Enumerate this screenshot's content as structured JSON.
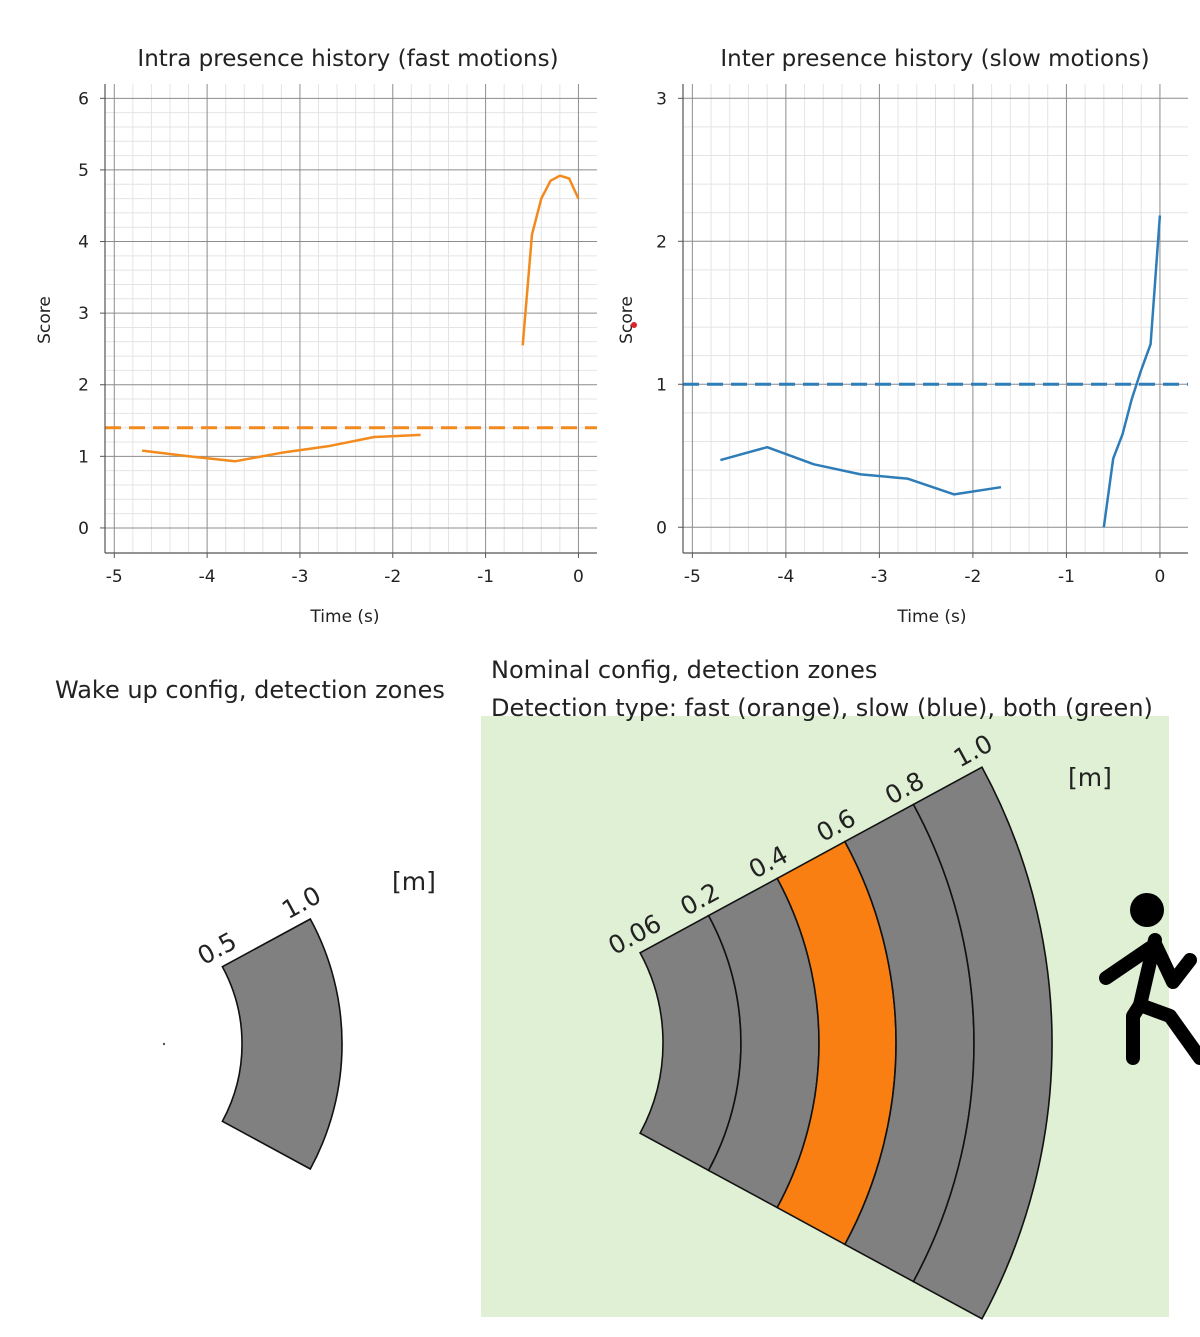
{
  "chart_data": [
    {
      "type": "line",
      "title": "Intra presence history (fast motions)",
      "xlabel": "Time (s)",
      "ylabel": "Score",
      "xlim": [
        -5.1,
        0.2
      ],
      "ylim": [
        -0.35,
        6.2
      ],
      "xticks": [
        -5,
        -4,
        -3,
        -2,
        -1,
        0
      ],
      "yticks": [
        0,
        1,
        2,
        3,
        4,
        5,
        6
      ],
      "grid": true,
      "color": "#f28a1e",
      "threshold": 1.4,
      "series": [
        {
          "values": [
            [
              -4.7,
              1.08
            ],
            [
              -4.2,
              1.0
            ],
            [
              -3.7,
              0.93
            ],
            [
              -3.2,
              1.05
            ],
            [
              -2.7,
              1.14
            ],
            [
              -2.2,
              1.27
            ],
            [
              -1.7,
              1.3
            ]
          ]
        },
        {
          "values": [
            [
              -0.6,
              2.55
            ],
            [
              -0.5,
              4.1
            ],
            [
              -0.4,
              4.6
            ],
            [
              -0.3,
              4.85
            ],
            [
              -0.2,
              4.92
            ],
            [
              -0.1,
              4.88
            ],
            [
              0.0,
              4.6
            ]
          ]
        }
      ]
    },
    {
      "type": "line",
      "title": "Inter presence history (slow motions)",
      "xlabel": "Time (s)",
      "ylabel": "Score",
      "xlim": [
        -5.1,
        0.3
      ],
      "ylim": [
        -0.18,
        3.1
      ],
      "xticks": [
        -5,
        -4,
        -3,
        -2,
        -1,
        0
      ],
      "yticks": [
        0,
        1,
        2,
        3
      ],
      "grid": true,
      "color": "#2f7db8",
      "threshold": 1.0,
      "series": [
        {
          "values": [
            [
              -4.7,
              0.47
            ],
            [
              -4.2,
              0.56
            ],
            [
              -3.7,
              0.44
            ],
            [
              -3.2,
              0.37
            ],
            [
              -2.7,
              0.34
            ],
            [
              -2.2,
              0.23
            ],
            [
              -1.7,
              0.28
            ]
          ]
        },
        {
          "values": [
            [
              -0.6,
              0.0
            ],
            [
              -0.5,
              0.48
            ],
            [
              -0.4,
              0.65
            ],
            [
              -0.3,
              0.9
            ],
            [
              -0.2,
              1.1
            ],
            [
              -0.1,
              1.28
            ],
            [
              0.0,
              2.18
            ]
          ]
        }
      ]
    }
  ],
  "zones": {
    "wake_up": {
      "title": "Wake up config, detection zones",
      "unit": "[m]",
      "labels": [
        "0.5",
        "1.0"
      ]
    },
    "nominal": {
      "title_line1": "Nominal config, detection zones",
      "title_line2": "Detection type: fast (orange), slow (blue), both (green)",
      "unit": "[m]",
      "labels": [
        "0.06",
        "0.2",
        "0.4",
        "0.6",
        "0.8",
        "1.0"
      ],
      "zone_colors": [
        "#808080",
        "#808080",
        "#fa7f12",
        "#808080",
        "#808080"
      ],
      "background_color": "#dff0d5",
      "person_icon": "walking-person-icon"
    }
  }
}
